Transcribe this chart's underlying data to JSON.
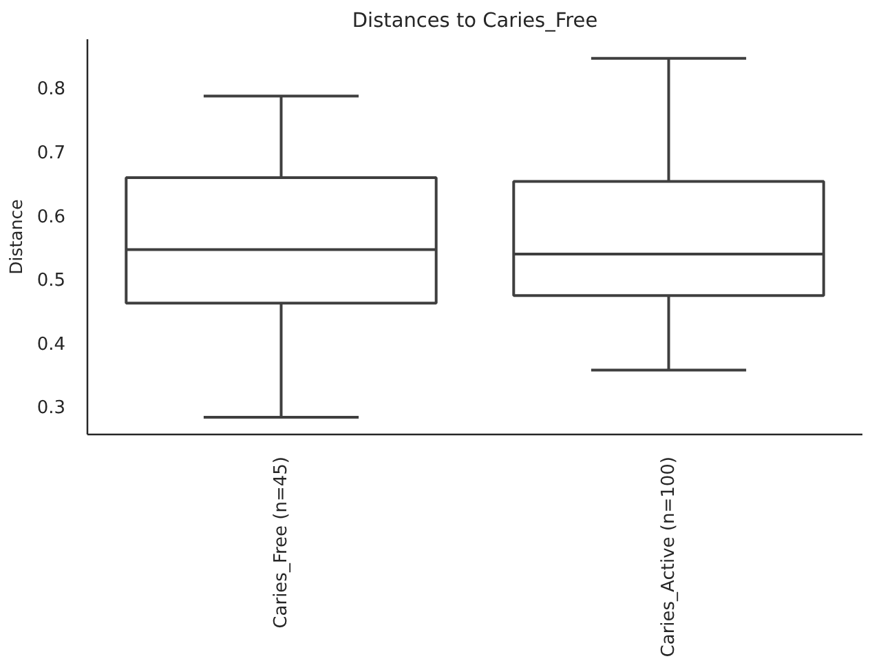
{
  "chart_data": {
    "type": "box",
    "title": "Distances to Caries_Free",
    "ylabel": "Distance",
    "categories": [
      "Caries_Free (n=45)",
      "Caries_Active (n=100)"
    ],
    "boxes": [
      {
        "low": 0.283,
        "q1": 0.462,
        "median": 0.546,
        "q3": 0.659,
        "high": 0.787
      },
      {
        "low": 0.357,
        "q1": 0.474,
        "median": 0.539,
        "q3": 0.653,
        "high": 0.846
      }
    ],
    "color": "#3f3f3f",
    "ylim": [
      0.256,
      0.876
    ],
    "yticks": [
      0.3,
      0.4,
      0.5,
      0.6,
      0.7,
      0.8
    ],
    "grid": false
  }
}
